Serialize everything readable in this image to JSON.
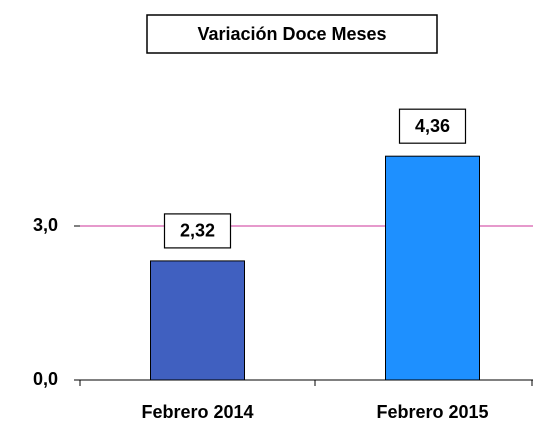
{
  "chart_data": {
    "type": "bar",
    "title": "Variación Doce Meses",
    "categories": [
      "Febrero 2014",
      "Febrero 2015"
    ],
    "values": [
      2.32,
      4.36
    ],
    "value_labels": [
      "2,32",
      "4,36"
    ],
    "colors": [
      "#4060c0",
      "#1e90ff"
    ],
    "ylim": [
      0,
      6
    ],
    "yticks": [
      {
        "value": 0,
        "label": "0,0"
      },
      {
        "value": 3,
        "label": "3,0"
      }
    ],
    "grid": true,
    "grid_color": "#cc3399"
  }
}
